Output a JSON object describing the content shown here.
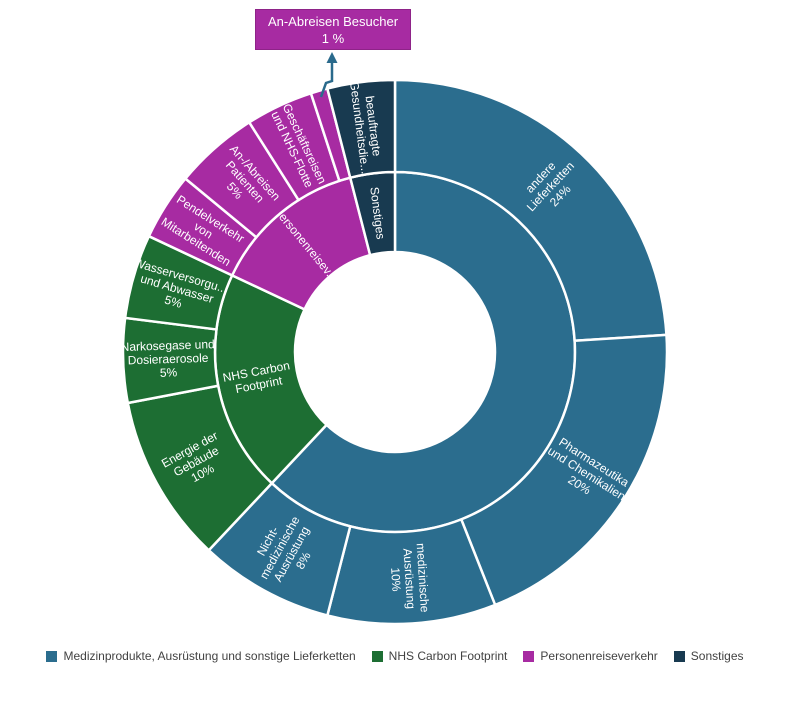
{
  "tooltip": {
    "title": "An-Abreisen Besucher",
    "value": "1 %",
    "background": "#a72ba2",
    "border": "#8e2388"
  },
  "colors": {
    "supply_chain_blue": "#2b6d8e",
    "nhs_footprint_green": "#1d6e33",
    "travel_magenta": "#a72ba2",
    "other_navy": "#183a50",
    "callout_arrow": "#2a6a8c",
    "separator_white": "#ffffff",
    "legend_text": "#424242"
  },
  "chart_data": {
    "type": "sunburst",
    "unit": "percent",
    "start_angle_deg": 0,
    "direction": "clockwise",
    "rings": {
      "inner": [
        {
          "name": "Medizinprodukte, Ausrüstung und sonstige Lieferketten",
          "value": 62,
          "color": "#2b6d8e",
          "label_lines": []
        },
        {
          "name": "NHS Carbon Footprint",
          "value": 20,
          "color": "#1d6e33",
          "label_lines": [
            "NHS Carbon",
            "Footprint"
          ]
        },
        {
          "name": "Personenreiseverkehr",
          "value": 14,
          "color": "#a72ba2",
          "label_lines": [
            "Personenreisev..."
          ]
        },
        {
          "name": "Sonstiges",
          "value": 4,
          "color": "#183a50",
          "label_lines": [
            "Sonstiges"
          ]
        }
      ],
      "outer": [
        {
          "name": "andere Lieferketten",
          "value": 24,
          "color": "#2b6d8e",
          "label_lines": [
            "andere",
            "Lieferketten",
            "24%"
          ]
        },
        {
          "name": "Pharmazeutika und Chemikalien",
          "value": 20,
          "color": "#2b6d8e",
          "label_lines": [
            "Pharmazeutika",
            "und Chemikalien",
            "20%"
          ]
        },
        {
          "name": "medizinische Ausrüstung",
          "value": 10,
          "color": "#2b6d8e",
          "label_lines": [
            "medizinische",
            "Ausrüstung",
            "10%"
          ]
        },
        {
          "name": "Nicht-medizinische Ausrüstung",
          "value": 8,
          "color": "#2b6d8e",
          "label_lines": [
            "Nicht-",
            "medizinische",
            "Ausrüstung",
            "8%"
          ]
        },
        {
          "name": "Energie der Gebäude",
          "value": 10,
          "color": "#1d6e33",
          "label_lines": [
            "Energie der",
            "Gebäude",
            "10%"
          ]
        },
        {
          "name": "Narkosegase und Dosieraerosole",
          "value": 5,
          "color": "#1d6e33",
          "label_lines": [
            "Narkosegase und",
            "Dosieraerosole",
            "5%"
          ]
        },
        {
          "name": "Wasserversorgung und Abwasser",
          "value": 5,
          "color": "#1d6e33",
          "label_lines": [
            "Wasserversorgu...",
            "und Abwasser",
            "5%"
          ]
        },
        {
          "name": "Pendelverkehr von Mitarbeitenden",
          "value": 4,
          "color": "#a72ba2",
          "label_lines": [
            "Pendelverkehr",
            "von",
            "Mitarbeitenden"
          ]
        },
        {
          "name": "An-/Abreisen Patienten",
          "value": 5,
          "color": "#a72ba2",
          "label_lines": [
            "An-/Abreisen",
            "Patienten",
            "5%"
          ]
        },
        {
          "name": "Geschäftsreisen und NHS-Flotte",
          "value": 4,
          "color": "#a72ba2",
          "label_lines": [
            "Geschäftsreisen",
            "und NHS-Flotte"
          ]
        },
        {
          "name": "An-Abreisen Besucher",
          "value": 1,
          "color": "#a72ba2",
          "label_lines": []
        },
        {
          "name": "beauftragte Gesundheitsdienste",
          "value": 4,
          "color": "#183a50",
          "label_lines": [
            "beauftragte",
            "Gesundheitsdie..."
          ]
        }
      ]
    }
  },
  "legend": {
    "items": [
      {
        "label": "Medizinprodukte, Ausrüstung und sonstige Lieferketten",
        "color": "#2b6d8e"
      },
      {
        "label": "NHS Carbon Footprint",
        "color": "#1d6e33"
      },
      {
        "label": "Personenreiseverkehr",
        "color": "#a72ba2"
      },
      {
        "label": "Sonstiges",
        "color": "#183a50"
      }
    ]
  }
}
